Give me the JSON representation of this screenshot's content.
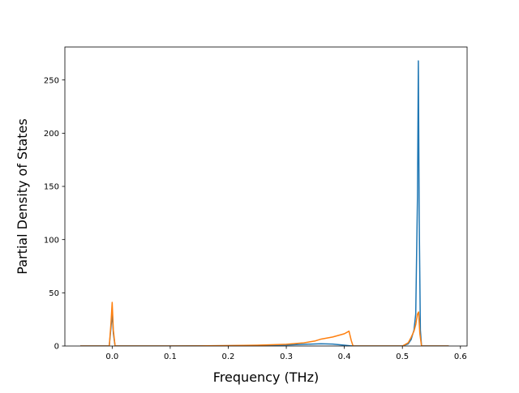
{
  "chart_data": {
    "type": "line",
    "title": "",
    "xlabel": "Frequency (THz)",
    "ylabel": "Partial Density of States",
    "xlim": [
      -0.0815,
      0.6115
    ],
    "ylim": [
      0,
      281
    ],
    "xticks": [
      0.0,
      0.1,
      0.2,
      0.3,
      0.4,
      0.5,
      0.6
    ],
    "xtick_labels": [
      "0.0",
      "0.1",
      "0.2",
      "0.3",
      "0.4",
      "0.5",
      "0.6"
    ],
    "yticks": [
      0,
      50,
      100,
      150,
      200,
      250
    ],
    "ytick_labels": [
      "0",
      "50",
      "100",
      "150",
      "200",
      "250"
    ],
    "grid": false,
    "legend": "none",
    "series": [
      {
        "color": "#1f77b4",
        "x": [
          -0.055,
          -0.005,
          -0.002,
          0.0,
          0.002,
          0.005,
          0.1,
          0.2,
          0.25,
          0.3,
          0.33,
          0.36,
          0.38,
          0.4,
          0.41,
          0.415,
          0.5,
          0.51,
          0.515,
          0.52,
          0.523,
          0.526,
          0.5275,
          0.529,
          0.531,
          0.533,
          0.58
        ],
        "y": [
          0,
          0,
          18,
          31,
          12,
          0,
          0,
          0.3,
          0.6,
          1.0,
          1.6,
          2.1,
          1.8,
          0.8,
          0.2,
          0,
          0,
          2,
          6,
          15,
          30,
          140,
          268,
          120,
          15,
          0,
          0
        ]
      },
      {
        "color": "#ff7f0e",
        "x": [
          -0.055,
          -0.005,
          -0.002,
          0.0,
          0.002,
          0.005,
          0.1,
          0.15,
          0.2,
          0.25,
          0.3,
          0.33,
          0.35,
          0.36,
          0.38,
          0.4,
          0.405,
          0.408,
          0.412,
          0.415,
          0.5,
          0.51,
          0.515,
          0.52,
          0.523,
          0.526,
          0.528,
          0.53,
          0.533,
          0.58
        ],
        "y": [
          0,
          0,
          22,
          41,
          15,
          0,
          0,
          0.1,
          0.4,
          0.8,
          1.6,
          3.0,
          4.8,
          6.5,
          8.5,
          11.5,
          13.0,
          14.0,
          5.0,
          0,
          0,
          3,
          8,
          14,
          20,
          30,
          32,
          12,
          0,
          0
        ]
      }
    ]
  }
}
